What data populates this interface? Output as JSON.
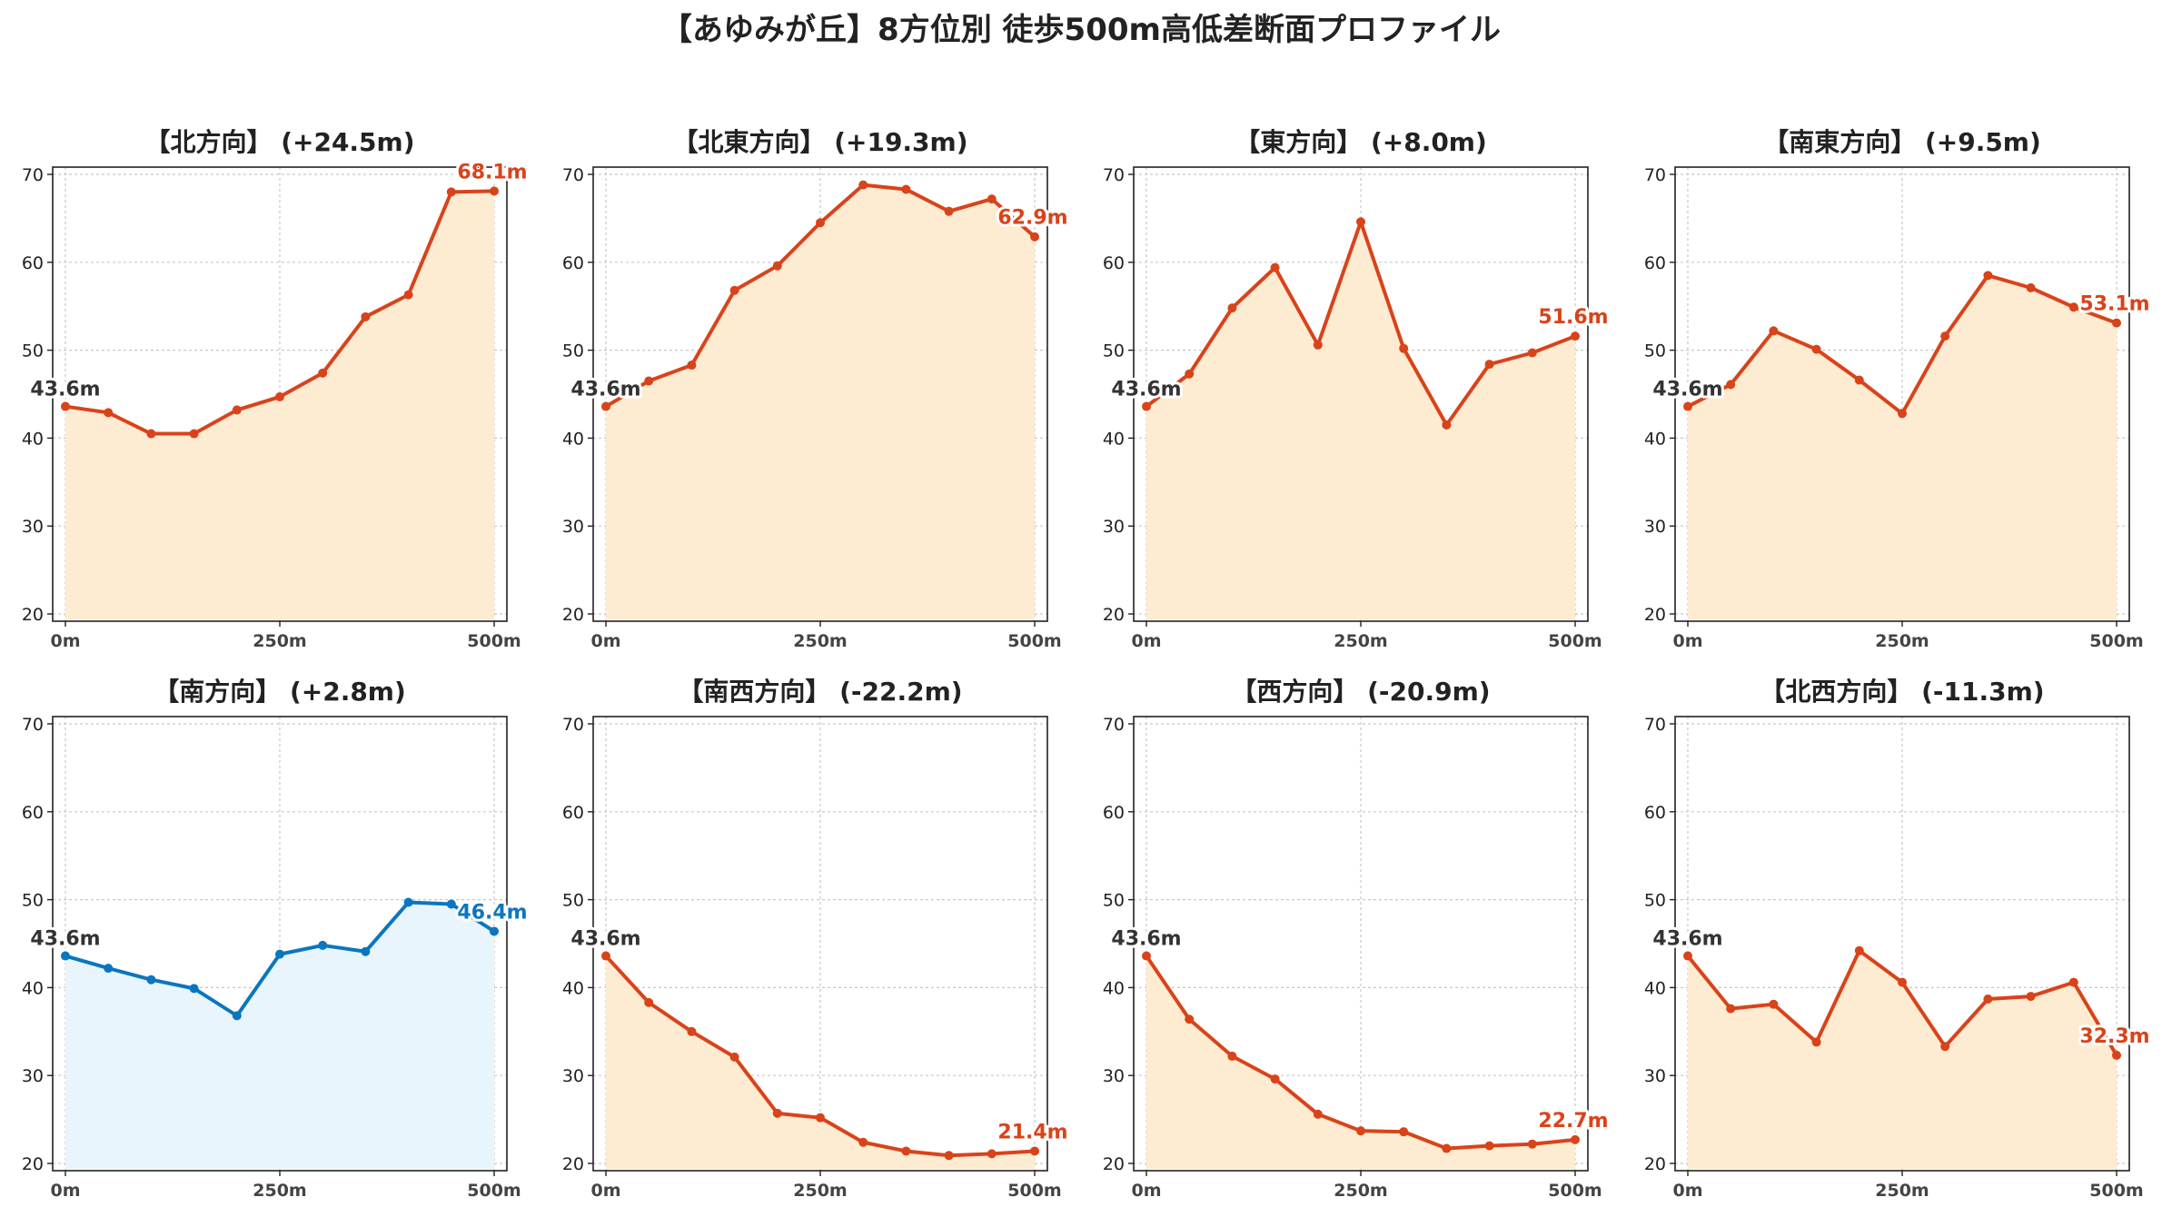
{
  "title": "【あゆみが丘】8方位別 徒歩500m高低差断面プロファイル",
  "colors": {
    "up": "#d9431a",
    "up_fill": "#fdebd2",
    "flat": "#0b76bf",
    "flat_fill": "#e9f5fc"
  },
  "chart_data": [
    {
      "type": "area",
      "title": "【北方向】 (+24.5m)",
      "color": "up",
      "x": [
        0,
        50,
        100,
        150,
        200,
        250,
        300,
        350,
        400,
        450,
        500
      ],
      "values": [
        43.6,
        42.9,
        40.5,
        40.5,
        43.2,
        44.7,
        47.4,
        53.8,
        56.3,
        68.0,
        68.1
      ],
      "start_label": "43.6m",
      "end_label": "68.1m",
      "ylim": [
        20,
        70
      ],
      "yticks": [
        "20",
        "30",
        "40",
        "50",
        "60",
        "70"
      ],
      "xticks": [
        "0m",
        "250m",
        "500m"
      ],
      "grid": true
    },
    {
      "type": "area",
      "title": "【北東方向】 (+19.3m)",
      "color": "up",
      "x": [
        0,
        50,
        100,
        150,
        200,
        250,
        300,
        350,
        400,
        450,
        500
      ],
      "values": [
        43.6,
        46.5,
        48.3,
        56.8,
        59.6,
        64.5,
        68.8,
        68.3,
        65.8,
        67.2,
        62.9
      ],
      "start_label": "43.6m",
      "end_label": "62.9m",
      "ylim": [
        20,
        70
      ],
      "yticks": [
        "20",
        "30",
        "40",
        "50",
        "60",
        "70"
      ],
      "xticks": [
        "0m",
        "250m",
        "500m"
      ],
      "grid": true
    },
    {
      "type": "area",
      "title": "【東方向】 (+8.0m)",
      "color": "up",
      "x": [
        0,
        50,
        100,
        150,
        200,
        250,
        300,
        350,
        400,
        450,
        500
      ],
      "values": [
        43.6,
        47.3,
        54.8,
        59.4,
        50.6,
        64.6,
        50.2,
        41.5,
        48.4,
        49.7,
        51.6
      ],
      "start_label": "43.6m",
      "end_label": "51.6m",
      "ylim": [
        20,
        70
      ],
      "yticks": [
        "20",
        "30",
        "40",
        "50",
        "60",
        "70"
      ],
      "xticks": [
        "0m",
        "250m",
        "500m"
      ],
      "grid": true
    },
    {
      "type": "area",
      "title": "【南東方向】 (+9.5m)",
      "color": "up",
      "x": [
        0,
        50,
        100,
        150,
        200,
        250,
        300,
        350,
        400,
        450,
        500
      ],
      "values": [
        43.6,
        46.1,
        52.2,
        50.1,
        46.6,
        42.8,
        51.6,
        58.5,
        57.1,
        54.9,
        53.1
      ],
      "start_label": "43.6m",
      "end_label": "53.1m",
      "ylim": [
        20,
        70
      ],
      "yticks": [
        "20",
        "30",
        "40",
        "50",
        "60",
        "70"
      ],
      "xticks": [
        "0m",
        "250m",
        "500m"
      ],
      "grid": true
    },
    {
      "type": "area",
      "title": "【南方向】 (+2.8m)",
      "color": "flat",
      "x": [
        0,
        50,
        100,
        150,
        200,
        250,
        300,
        350,
        400,
        450,
        500
      ],
      "values": [
        43.6,
        42.2,
        40.9,
        39.9,
        36.8,
        43.8,
        44.8,
        44.1,
        49.7,
        49.5,
        46.4
      ],
      "start_label": "43.6m",
      "end_label": "46.4m",
      "ylim": [
        20,
        70
      ],
      "yticks": [
        "20",
        "30",
        "40",
        "50",
        "60",
        "70"
      ],
      "xticks": [
        "0m",
        "250m",
        "500m"
      ],
      "grid": true
    },
    {
      "type": "area",
      "title": "【南西方向】 (-22.2m)",
      "color": "up",
      "x": [
        0,
        50,
        100,
        150,
        200,
        250,
        300,
        350,
        400,
        450,
        500
      ],
      "values": [
        43.6,
        38.3,
        35.0,
        32.1,
        25.7,
        25.2,
        22.4,
        21.4,
        20.9,
        21.1,
        21.4
      ],
      "start_label": "43.6m",
      "end_label": "21.4m",
      "ylim": [
        20,
        70
      ],
      "yticks": [
        "20",
        "30",
        "40",
        "50",
        "60",
        "70"
      ],
      "xticks": [
        "0m",
        "250m",
        "500m"
      ],
      "grid": true
    },
    {
      "type": "area",
      "title": "【西方向】 (-20.9m)",
      "color": "up",
      "x": [
        0,
        50,
        100,
        150,
        200,
        250,
        300,
        350,
        400,
        450,
        500
      ],
      "values": [
        43.6,
        36.4,
        32.2,
        29.6,
        25.6,
        23.7,
        23.6,
        21.7,
        22.0,
        22.2,
        22.7
      ],
      "start_label": "43.6m",
      "end_label": "22.7m",
      "ylim": [
        20,
        70
      ],
      "yticks": [
        "20",
        "30",
        "40",
        "50",
        "60",
        "70"
      ],
      "xticks": [
        "0m",
        "250m",
        "500m"
      ],
      "grid": true
    },
    {
      "type": "area",
      "title": "【北西方向】 (-11.3m)",
      "color": "up",
      "x": [
        0,
        50,
        100,
        150,
        200,
        250,
        300,
        350,
        400,
        450,
        500
      ],
      "values": [
        43.6,
        37.6,
        38.1,
        33.8,
        44.2,
        40.6,
        33.3,
        38.7,
        39.0,
        40.6,
        32.3
      ],
      "start_label": "43.6m",
      "end_label": "32.3m",
      "ylim": [
        20,
        70
      ],
      "yticks": [
        "20",
        "30",
        "40",
        "50",
        "60",
        "70"
      ],
      "xticks": [
        "0m",
        "250m",
        "500m"
      ],
      "grid": true
    }
  ]
}
